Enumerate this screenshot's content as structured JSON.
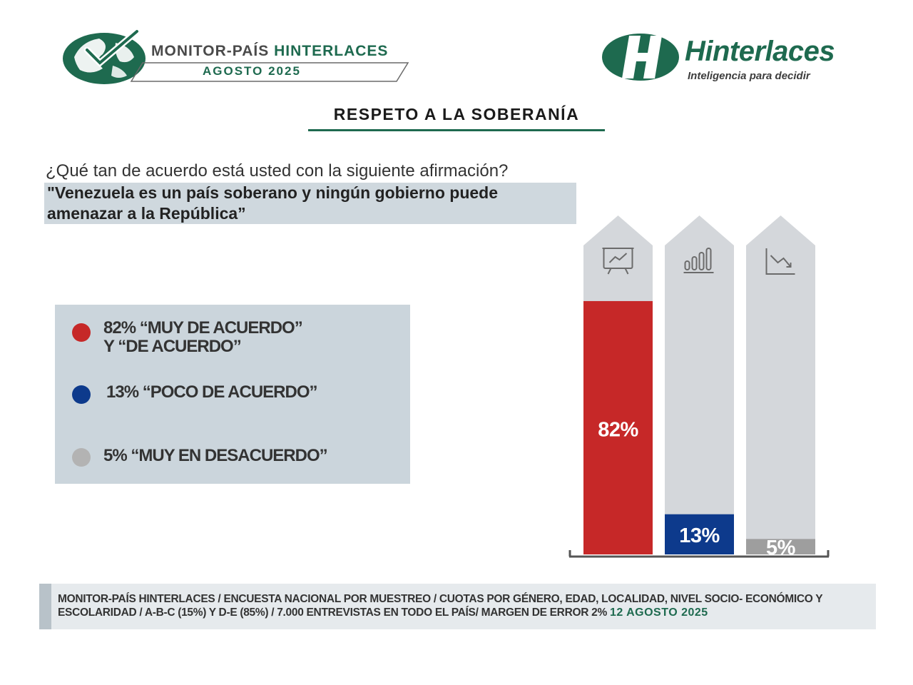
{
  "header": {
    "monitor_title_part1": "MONITOR-PAÍS",
    "monitor_title_part2": "HINTERLACES",
    "monitor_date": "AGOSTO 2025",
    "brand_name": "Hinterlaces",
    "brand_tagline": "Inteligencia para decidir"
  },
  "section_title": "RESPETO A LA SOBERANÍA",
  "question": "¿Qué tan de acuerdo está usted con la siguiente afirmación?",
  "statement": "\"Venezuela es un país soberano y ningún gobierno puede amenazar a la República”",
  "legend": {
    "items": [
      {
        "line1": "82% “MUY DE ACUERDO”",
        "line2": "Y “DE ACUERDO”",
        "color": "#c62828"
      },
      {
        "line1": "13% “POCO DE ACUERDO”",
        "line2": "",
        "color": "#0d3a8c"
      },
      {
        "line1": "5% “MUY EN DESACUERDO”",
        "line2": "",
        "color": "#b3b3b3"
      }
    ]
  },
  "chart_data": {
    "type": "bar",
    "categories": [
      "Muy de acuerdo y de acuerdo",
      "Poco de acuerdo",
      "Muy en desacuerdo"
    ],
    "values": [
      82,
      13,
      5
    ],
    "value_labels": [
      "82%",
      "13%",
      "5%"
    ],
    "colors": [
      "#c62828",
      "#0d3a8c",
      "#9e9e9e"
    ],
    "track_color": "#d4d7db",
    "icons": [
      "presentation-chart-icon",
      "bar-levels-icon",
      "declining-chart-icon"
    ],
    "ylim": [
      0,
      100
    ],
    "title": "",
    "xlabel": "",
    "ylabel": ""
  },
  "footer": {
    "text": "MONITOR-PAÍS HINTERLACES / ENCUESTA NACIONAL POR MUESTREO / CUOTAS POR GÉNERO, EDAD, LOCALIDAD, NIVEL SOCIO- ECONÓMICO Y ESCOLARIDAD / A-B-C (15%) Y D-E (85%) / 7.000 ENTREVISTAS EN TODO EL PAÍS/ MARGEN DE ERROR 2%",
    "date": "12 AGOSTO 2025"
  }
}
